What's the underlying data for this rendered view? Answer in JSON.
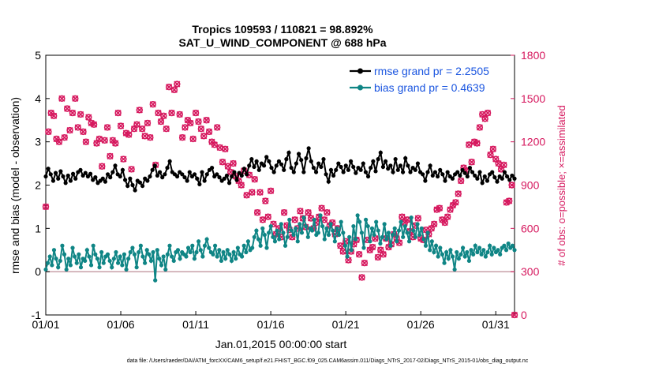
{
  "chart_data": {
    "type": "line",
    "title_line1": "Tropics 109593 / 110821 = 98.892%",
    "title_line2": "SAT_U_WIND_COMPONENT @ 688 hPa",
    "xlabel": "Jan.01,2015 00:00:00 start",
    "ylabel": "rmse and bias (model - observation)",
    "ylabel_right": "# of obs: o=possible; ×=assimilated",
    "xlim": [
      0,
      31.25
    ],
    "ylim": [
      -1,
      5
    ],
    "ylim_right": [
      0,
      1800
    ],
    "x_tick_labels": [
      "01/01",
      "01/06",
      "01/11",
      "01/16",
      "01/21",
      "01/26",
      "01/31"
    ],
    "y_tick_labels": [
      "-1",
      "0",
      "1",
      "2",
      "3",
      "4",
      "5"
    ],
    "y_right_tick_labels": [
      "0",
      "300",
      "600",
      "900",
      "1200",
      "1500",
      "1800"
    ],
    "legend": {
      "rmse": "rmse grand pr = 2.2505",
      "bias": "bias grand pr = 0.4639"
    },
    "series": [
      {
        "name": "rmse",
        "color": "#000000",
        "values": [
          2.2,
          2.38,
          2.25,
          2.1,
          2.28,
          2.15,
          2.32,
          2.2,
          2.05,
          2.22,
          2.1,
          2.26,
          2.15,
          2.3,
          2.35,
          2.22,
          2.28,
          2.2,
          2.26,
          2.12,
          2.18,
          2.05,
          2.1,
          2.15,
          2.08,
          2.25,
          2.18,
          2.3,
          2.45,
          2.25,
          2.2,
          2.35,
          2.12,
          1.98,
          2.15,
          2.0,
          1.88,
          2.1,
          2.06,
          1.98,
          2.15,
          2.1,
          2.2,
          2.35,
          2.45,
          2.22,
          2.3,
          2.18,
          2.25,
          2.4,
          2.55,
          2.3,
          2.25,
          2.2,
          2.3,
          2.25,
          2.18,
          2.1,
          2.3,
          2.2,
          2.25,
          2.15,
          2.02,
          2.3,
          2.1,
          2.25,
          2.35,
          2.4,
          2.2,
          2.25,
          2.18,
          2.1,
          2.15,
          2.22,
          2.05,
          2.2,
          2.3,
          2.12,
          2.28,
          2.22,
          2.38,
          2.25,
          2.45,
          2.6,
          2.42,
          2.55,
          2.35,
          2.5,
          2.45,
          2.65,
          2.55,
          2.4,
          2.3,
          2.45,
          2.55,
          2.48,
          2.35,
          2.6,
          2.75,
          2.4,
          2.3,
          2.5,
          2.72,
          2.58,
          2.3,
          2.62,
          2.85,
          2.55,
          2.4,
          2.3,
          2.5,
          2.42,
          2.6,
          2.25,
          2.08,
          2.35,
          2.22,
          2.35,
          2.5,
          2.42,
          2.3,
          2.45,
          2.35,
          2.55,
          2.42,
          2.28,
          2.4,
          2.35,
          2.5,
          2.3,
          2.2,
          2.4,
          2.55,
          2.32,
          2.6,
          2.75,
          2.42,
          2.55,
          2.38,
          2.45,
          2.3,
          2.6,
          2.35,
          2.45,
          2.3,
          2.62,
          2.45,
          2.3,
          2.4,
          2.35,
          2.5,
          2.3,
          2.25,
          2.1,
          2.3,
          2.45,
          2.22,
          2.3,
          2.2,
          2.35,
          2.25,
          2.1,
          2.3,
          2.2,
          2.15,
          2.25,
          2.3,
          2.22,
          2.35,
          2.28,
          2.2,
          2.4,
          2.3,
          2.22,
          2.15,
          2.3,
          2.05,
          2.2,
          2.1,
          2.25,
          2.3,
          2.18,
          2.08,
          2.2,
          2.15,
          2.3,
          2.2,
          2.12,
          2.22,
          2.15
        ],
        "markers": [
          2.2,
          2.38,
          2.25,
          2.1,
          2.28,
          2.15,
          2.32,
          2.2,
          2.05,
          2.22,
          2.1,
          2.26,
          2.15,
          2.3,
          2.35,
          2.22,
          2.28,
          2.2,
          2.26,
          2.12,
          2.18,
          2.05,
          2.1,
          2.15,
          2.08,
          2.25,
          2.18,
          2.3,
          2.45,
          2.25,
          2.2,
          2.35,
          2.12,
          1.98,
          2.15,
          2.0,
          1.88,
          2.1,
          2.06,
          1.98,
          2.15,
          2.1,
          2.2,
          2.35,
          2.45,
          2.22,
          2.3,
          2.18,
          2.25,
          2.4,
          2.55,
          2.3,
          2.25,
          2.2,
          2.3,
          2.25,
          2.18,
          2.1,
          2.3,
          2.2,
          2.25,
          2.15,
          2.02,
          2.3,
          2.1,
          2.25,
          2.35,
          2.4,
          2.2,
          2.25,
          2.18,
          2.1,
          2.15,
          2.22,
          2.05,
          2.2,
          2.3,
          2.12,
          2.28,
          2.22,
          2.38,
          2.25,
          2.45,
          2.6,
          2.42,
          2.55,
          2.35,
          2.5,
          2.45,
          2.65,
          2.55,
          2.4,
          2.3,
          2.45,
          2.55,
          2.48,
          2.35,
          2.6,
          2.75,
          2.4,
          2.3,
          2.5,
          2.72,
          2.58,
          2.3,
          2.62,
          2.85,
          2.55,
          2.4,
          2.3,
          2.5,
          2.42,
          2.6,
          2.25,
          2.08,
          2.35,
          2.22,
          2.35,
          2.5,
          2.42,
          2.3,
          2.45,
          2.35,
          2.55,
          2.42,
          2.28,
          2.4,
          2.35,
          2.5,
          2.3,
          2.2,
          2.4,
          2.55,
          2.32,
          2.6,
          2.75,
          2.42,
          2.55,
          2.38,
          2.45,
          2.3,
          2.6,
          2.35,
          2.45,
          2.3,
          2.62,
          2.45,
          2.3,
          2.4,
          2.35,
          2.5,
          2.3,
          2.25,
          2.1,
          2.3,
          2.45,
          2.22,
          2.3,
          2.2,
          2.35,
          2.25,
          2.1,
          2.3,
          2.2,
          2.15,
          2.25,
          2.3,
          2.22,
          2.35,
          2.28,
          2.2,
          2.4,
          2.3,
          2.22,
          2.15,
          2.3,
          2.05,
          2.2,
          2.1,
          2.25,
          2.3,
          2.18,
          2.08,
          2.2,
          2.15,
          2.3,
          2.2,
          2.12,
          2.22,
          2.15
        ]
      },
      {
        "name": "bias",
        "color": "#0f8585",
        "values": [
          0.05,
          0.2,
          0.35,
          0.15,
          0.5,
          0.3,
          0.1,
          0.25,
          0.6,
          0.4,
          0.05,
          0.3,
          0.15,
          0.55,
          0.35,
          0.2,
          0.4,
          0.1,
          0.3,
          0.25,
          0.5,
          0.35,
          0.15,
          0.6,
          0.4,
          0.3,
          0.1,
          0.45,
          0.2,
          0.35,
          0.4,
          0.25,
          0.1,
          0.3,
          0.45,
          0.2,
          0.35,
          0.15,
          0.4,
          0.05,
          0.3,
          0.45,
          0.55,
          0.4,
          0.1,
          0.45,
          0.6,
          0.35,
          0.2,
          0.5,
          0.4,
          0.25,
          0.45,
          -0.2,
          0.5,
          0.3,
          0.15,
          0.35,
          0.05,
          0.4,
          0.6,
          0.35,
          0.25,
          0.45,
          0.5,
          0.3,
          0.45,
          0.4,
          0.35,
          0.55,
          0.45,
          0.6,
          0.3,
          0.45,
          0.7,
          0.5,
          0.35,
          0.6,
          0.75,
          0.55,
          0.45,
          0.4,
          0.6,
          0.35,
          0.5,
          0.25,
          0.45,
          0.3,
          0.5,
          0.4,
          0.25,
          0.45,
          0.3,
          0.55,
          0.4,
          0.35,
          0.6,
          0.45,
          0.7,
          0.5,
          0.55,
          0.8,
          0.95,
          0.75,
          0.6,
          1.0,
          0.85,
          0.55,
          0.9,
          1.05,
          0.8,
          0.7,
          0.95,
          0.75,
          1.1,
          0.9,
          0.6,
          0.8,
          1.2,
          0.95,
          0.85,
          1.0,
          0.7,
          1.1,
          0.9,
          1.25,
          1.05,
          0.8,
          1.0,
          0.95,
          1.2,
          0.85,
          0.9,
          1.3,
          1.05,
          0.75,
          1.0,
          0.85,
          1.1,
          0.95,
          0.7,
          1.0,
          0.85,
          1.15,
          0.9,
          0.6,
          0.35,
          0.8,
          0.5,
          1.05,
          0.75,
          1.3,
          1.15,
          0.9,
          0.55,
          1.2,
          1.05,
          0.7,
          1.0,
          0.85,
          1.15,
          0.95,
          0.65,
          0.8,
          1.1,
          0.75,
          0.9,
          0.6,
          0.85,
          1.0,
          0.7,
          0.95,
          1.15,
          0.8,
          1.05,
          0.9,
          0.7,
          1.25,
          0.95,
          0.8,
          1.1,
          0.85,
          1.0,
          0.75,
          0.6,
          0.9,
          0.5,
          0.7,
          0.45,
          0.6,
          0.35,
          0.55,
          0.4,
          0.2,
          0.45,
          0.3,
          0.5,
          0.35,
          0.05,
          0.45,
          0.3,
          0.4,
          0.55,
          0.35,
          0.45,
          0.25,
          0.5,
          0.4,
          0.6,
          0.45,
          0.55,
          0.4,
          0.5,
          0.35,
          0.45,
          0.6,
          0.4,
          0.55,
          0.45,
          0.5,
          0.4,
          0.55,
          0.6,
          0.5,
          0.65,
          0.55,
          0.6,
          0.5
        ]
      },
      {
        "name": "obs_possible",
        "color": "#d6185e",
        "values": [
          750,
          1270,
          1400,
          1380,
          1220,
          1200,
          1500,
          1230,
          1430,
          1280,
          1400,
          1500,
          1300,
          1390,
          1270,
          1200,
          1370,
          1330,
          1320,
          1190,
          1220,
          1030,
          1210,
          1300,
          1100,
          1210,
          1190,
          1400,
          1310,
          1080,
          1260,
          1250,
          1010,
          1290,
          1320,
          1420,
          1290,
          1240,
          1330,
          1230,
          1460,
          1040,
          1400,
          1340,
          1380,
          1290,
          1580,
          1400,
          1560,
          1600,
          1390,
          1230,
          1300,
          1350,
          1330,
          1220,
          1400,
          1340,
          1290,
          1240,
          1350,
          1270,
          1200,
          1180,
          1300,
          1160,
          1060,
          1150,
          1030,
          990,
          1050,
          960,
          930,
          900,
          1000,
          830,
          970,
          850,
          940,
          710,
          850,
          660,
          790,
          680,
          860,
          630,
          560,
          600,
          540,
          710,
          620,
          590,
          540,
          660,
          600,
          720,
          670,
          610,
          710,
          670,
          600,
          640,
          680,
          740,
          660,
          710,
          620,
          640,
          560,
          600,
          480,
          440,
          510,
          380,
          440,
          490,
          520,
          420,
          260,
          360,
          520,
          450,
          470,
          530,
          400,
          450,
          420,
          530,
          470,
          490,
          560,
          530,
          500,
          680,
          640,
          660,
          580,
          540,
          620,
          670,
          530,
          520,
          590,
          560,
          600,
          630,
          730,
          740,
          660,
          640,
          680,
          730,
          760,
          780,
          840,
          930,
          1020,
          1000,
          1180,
          1060,
          1200,
          1190,
          1300,
          1390,
          1360,
          1400,
          1110,
          1150,
          1080,
          1050,
          1010,
          1040,
          780,
          790,
          900,
          0
        ],
        "markers": [
          750,
          1270,
          1400,
          1380,
          1220,
          1200,
          1500,
          1230,
          1430,
          1280,
          1400,
          1500,
          1300,
          1390,
          1270,
          1200,
          1370,
          1330,
          1320,
          1190,
          1220,
          1030,
          1210,
          1300,
          1100,
          1210,
          1190,
          1400,
          1310,
          1080,
          1260,
          1250,
          1010,
          1290,
          1320,
          1420,
          1290,
          1240,
          1330,
          1230,
          1460,
          1040,
          1400,
          1340,
          1380,
          1290,
          1580,
          1400,
          1560,
          1600,
          1390,
          1230,
          1300,
          1350,
          1330,
          1220,
          1400,
          1340,
          1290,
          1240,
          1350,
          1270,
          1200,
          1180,
          1300,
          1160,
          1060,
          1150,
          1030,
          990,
          1050,
          960,
          930,
          900,
          1000,
          830,
          970,
          850,
          940,
          710,
          850,
          660,
          790,
          680,
          860,
          630,
          560,
          600,
          540,
          710,
          620,
          590,
          540,
          660,
          600,
          720,
          670,
          610,
          710,
          670,
          600,
          640,
          680,
          740,
          660,
          710,
          620,
          640,
          560,
          600,
          480,
          440,
          510,
          380,
          440,
          490,
          520,
          420,
          260,
          360,
          520,
          450,
          470,
          530,
          400,
          450,
          420,
          530,
          470,
          490,
          560,
          530,
          500,
          680,
          640,
          660,
          580,
          540,
          620,
          670,
          530,
          520,
          590,
          560,
          600,
          630,
          730,
          740,
          660,
          640,
          680,
          730,
          760,
          780,
          840,
          930,
          1020,
          1000,
          1180,
          1060,
          1200,
          1190,
          1300,
          1390,
          1360,
          1400,
          1110,
          1150,
          1080,
          1050,
          1010,
          1040,
          780,
          790,
          900,
          0
        ]
      }
    ],
    "grid": false,
    "legend_position": "top-right"
  },
  "footer": "data file: /Users/raeder/DAI/ATM_forcXX/CAM6_setup/f.e21.FHIST_BGC.f09_025.CAM6assim.011/Diags_NTrS_2017-02/Diags_NTrS_2015-01/obs_diag_output.nc"
}
